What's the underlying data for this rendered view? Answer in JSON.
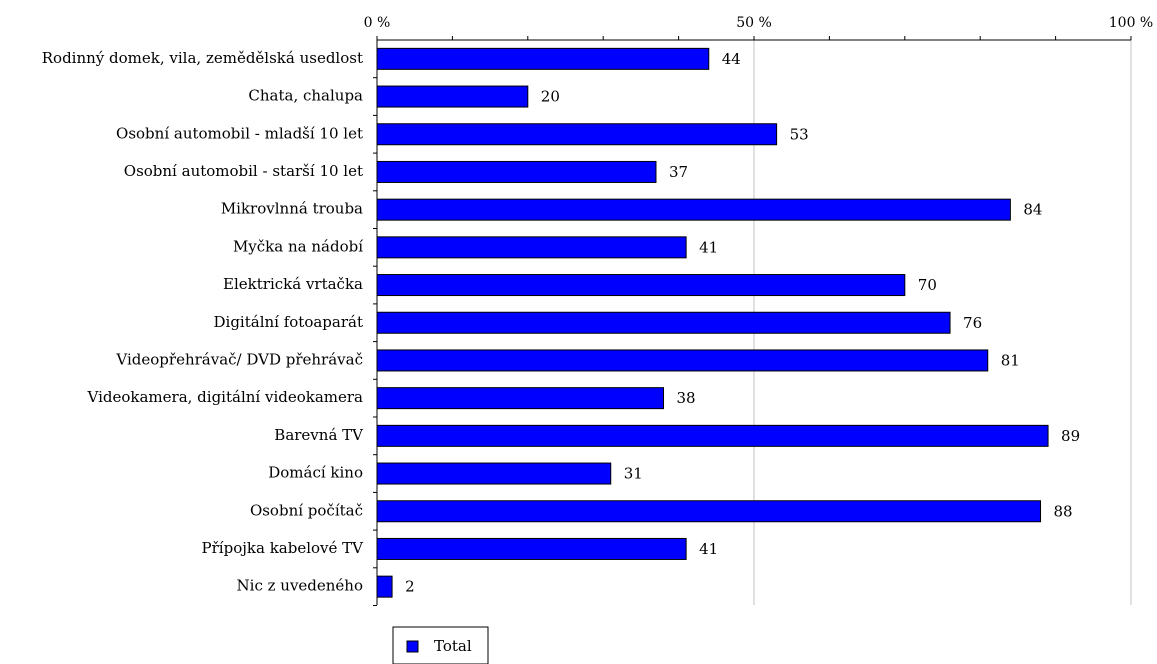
{
  "chart_data": {
    "type": "bar",
    "orientation": "horizontal",
    "categories": [
      "Rodinný domek, vila, zemědělská usedlost",
      "Chata, chalupa",
      "Osobní automobil - mladší 10 let",
      "Osobní automobil - starší 10 let",
      "Mikrovlnná trouba",
      "Myčka na nádobí",
      "Elektrická vrtačka",
      "Digitální fotoaparát",
      "Videopřehrávač/ DVD přehrávač",
      "Videokamera, digitální videokamera",
      "Barevná TV",
      "Domácí kino",
      "Osobní počítač",
      "Přípojka kabelové TV",
      "Nic z uvedeného"
    ],
    "series": [
      {
        "name": "Total",
        "color": "#0000ff",
        "values": [
          44,
          20,
          53,
          37,
          84,
          41,
          70,
          76,
          81,
          38,
          89,
          31,
          88,
          41,
          2
        ]
      }
    ],
    "xlim": [
      0,
      100
    ],
    "x_ticks": [
      {
        "value": 0,
        "label": "0 %"
      },
      {
        "value": 50,
        "label": "50 %"
      },
      {
        "value": 100,
        "label": "100 %"
      }
    ],
    "minor_tick_step": 10,
    "grid": "vertical",
    "grid_color": "#c0c0c0",
    "legend_position": "bottom-left",
    "title": "",
    "xlabel": "",
    "ylabel": ""
  }
}
